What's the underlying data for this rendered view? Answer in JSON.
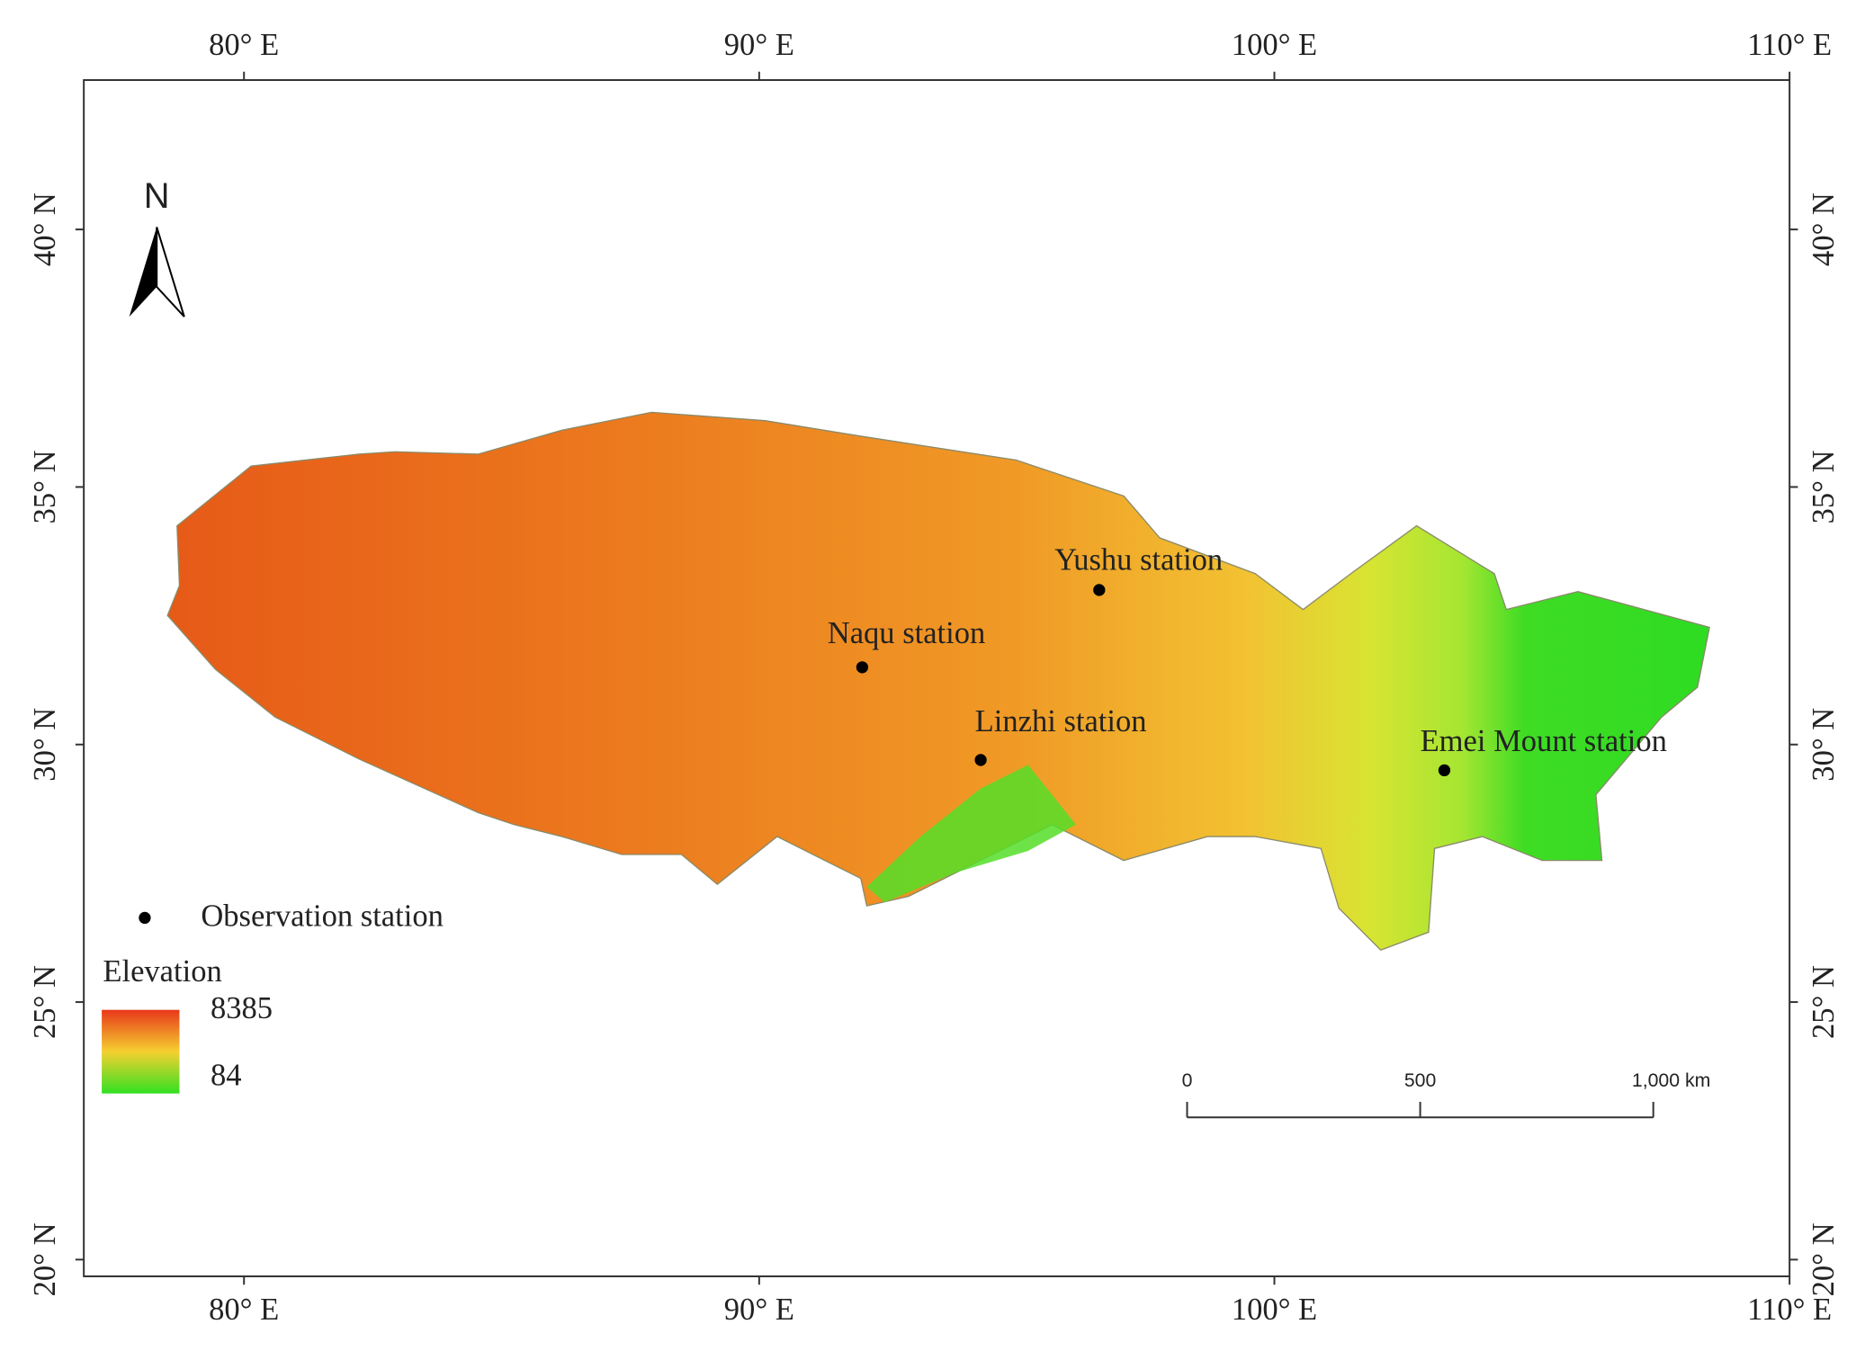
{
  "map": {
    "xticks": [
      {
        "value": 80,
        "label": "80° E"
      },
      {
        "value": 90,
        "label": "90° E"
      },
      {
        "value": 100,
        "label": "100° E"
      },
      {
        "value": 110,
        "label": "110° E"
      }
    ],
    "yticks": [
      {
        "value": 20,
        "label": "20° N"
      },
      {
        "value": 25,
        "label": "25° N"
      },
      {
        "value": 30,
        "label": "30° N"
      },
      {
        "value": 35,
        "label": "35° N"
      },
      {
        "value": 40,
        "label": "40° N"
      }
    ],
    "stations": [
      {
        "name": "Yushu station",
        "lon": 96.6,
        "lat": 33.0
      },
      {
        "name": "Naqu station",
        "lon": 92.0,
        "lat": 31.5
      },
      {
        "name": "Linzhi station",
        "lon": 94.3,
        "lat": 29.7
      },
      {
        "name": "Emei Mount station",
        "lon": 103.3,
        "lat": 29.5
      }
    ],
    "north_label": "N",
    "legend": {
      "station_label": "Observation station",
      "elevation_title": "Elevation",
      "elevation_max": 8385,
      "elevation_min": 84
    },
    "scale_bar": {
      "labels": [
        "0",
        "500",
        "1,000 km"
      ]
    }
  }
}
